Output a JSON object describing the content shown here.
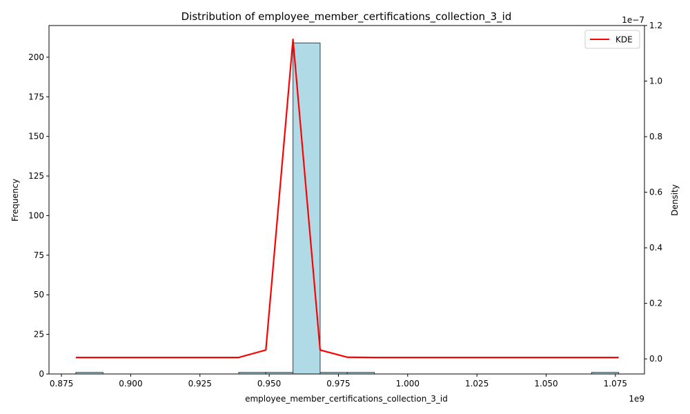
{
  "chart_data": {
    "type": "bar",
    "title": "Distribution of employee_member_certifications_collection_3_id",
    "xlabel": "employee_member_certifications_collection_3_id",
    "ylabel": "Frequency",
    "y2label": "Density",
    "x_multiplier": "1e9",
    "y2_multiplier": "1e−7",
    "xlim": [
      0.8705,
      1.0855
    ],
    "ylim": [
      0,
      220
    ],
    "y2lim": [
      -5.43e-09,
      1.2e-07
    ],
    "x_ticks": [
      0.875,
      0.9,
      0.925,
      0.95,
      0.975,
      1.0,
      1.025,
      1.05,
      1.075
    ],
    "x_tick_labels": [
      "0.875",
      "0.900",
      "0.925",
      "0.950",
      "0.975",
      "1.000",
      "1.025",
      "1.050",
      "1.075"
    ],
    "y_ticks": [
      0,
      25,
      50,
      75,
      100,
      125,
      150,
      175,
      200
    ],
    "y_tick_labels": [
      "0",
      "25",
      "50",
      "75",
      "100",
      "125",
      "150",
      "175",
      "200"
    ],
    "y2_ticks": [
      0.0,
      2e-08,
      4e-08,
      6e-08,
      8e-08,
      1e-07,
      1.2e-07
    ],
    "y2_tick_labels": [
      "0.0",
      "0.2",
      "0.4",
      "0.6",
      "0.8",
      "1.0",
      "1.2"
    ],
    "bins": [
      {
        "start": 0.8802,
        "end": 0.89,
        "count": 1
      },
      {
        "start": 0.939,
        "end": 0.9488,
        "count": 1
      },
      {
        "start": 0.9488,
        "end": 0.9586,
        "count": 1
      },
      {
        "start": 0.9586,
        "end": 0.9684,
        "count": 209
      },
      {
        "start": 0.9684,
        "end": 0.9782,
        "count": 1
      },
      {
        "start": 0.9782,
        "end": 0.988,
        "count": 1
      },
      {
        "start": 1.0664,
        "end": 1.0762,
        "count": 1
      }
    ],
    "bar_color": "#add8e6",
    "bar_edge_color": "#2f3f4f",
    "kde": {
      "name": "KDE",
      "color": "#ff0000",
      "x": [
        0.8802,
        0.939,
        0.9488,
        0.9586,
        0.9684,
        0.9782,
        0.988,
        1.0762
      ],
      "y": [
        5e-10,
        5e-10,
        3.2e-09,
        1.15e-07,
        3.2e-09,
        6e-10,
        5e-10,
        5e-10
      ]
    },
    "legend": {
      "position": "top-right",
      "entries": [
        "KDE"
      ]
    },
    "grid": false
  }
}
